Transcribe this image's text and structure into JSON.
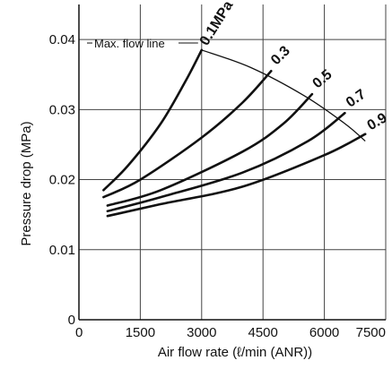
{
  "chart_data": {
    "type": "line",
    "xlabel": "Air flow rate (ℓ/min (ANR))",
    "ylabel": "Pressure drop (MPa)",
    "xlim": [
      0,
      7500
    ],
    "ylim": [
      0,
      0.045
    ],
    "x_ticks": [
      0,
      1500,
      3000,
      4500,
      6000,
      7500
    ],
    "x_tick_labels": [
      "0",
      "1500",
      "3000",
      "4500",
      "6000",
      "7500"
    ],
    "y_ticks": [
      0,
      0.01,
      0.02,
      0.03,
      0.04
    ],
    "y_tick_labels": [
      "0",
      "0.01",
      "0.02",
      "0.03",
      "0.04"
    ],
    "grid": true,
    "colors": {
      "line": "#111111",
      "grid": "#444444",
      "background": "#ffffff"
    },
    "series": [
      {
        "name": "0.1MPa",
        "x": [
          600,
          1200,
          2000,
          2600,
          3000
        ],
        "y": [
          0.0185,
          0.022,
          0.028,
          0.034,
          0.0385
        ]
      },
      {
        "name": "0.3",
        "x": [
          600,
          1500,
          3000,
          4000,
          4700
        ],
        "y": [
          0.0175,
          0.02,
          0.026,
          0.031,
          0.0355
        ]
      },
      {
        "name": "0.5",
        "x": [
          700,
          2000,
          4000,
          5000,
          5700
        ],
        "y": [
          0.0163,
          0.0185,
          0.024,
          0.028,
          0.0322
        ]
      },
      {
        "name": "0.7",
        "x": [
          700,
          2000,
          4000,
          5600,
          6500
        ],
        "y": [
          0.0155,
          0.0175,
          0.021,
          0.0255,
          0.0295
        ]
      },
      {
        "name": "0.9",
        "x": [
          700,
          2000,
          4000,
          6000,
          7000
        ],
        "y": [
          0.0148,
          0.0165,
          0.019,
          0.0235,
          0.0265
        ]
      }
    ],
    "max_flow_line": {
      "label": "Max. flow line",
      "x": [
        3000,
        4200,
        5500,
        6500,
        7000
      ],
      "y": [
        0.0385,
        0.036,
        0.032,
        0.028,
        0.0255
      ]
    }
  }
}
